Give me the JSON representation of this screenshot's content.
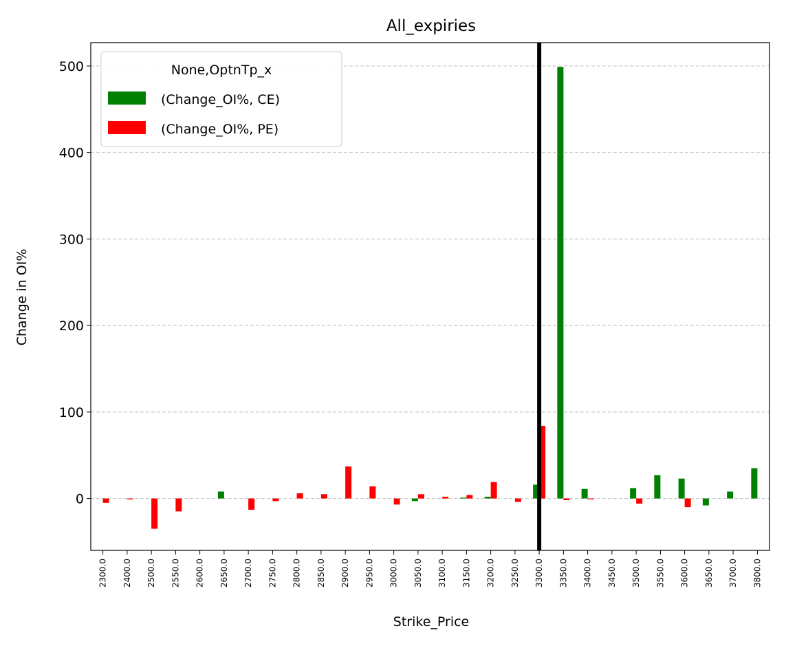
{
  "chart_data": {
    "type": "bar",
    "title": "All_expiries",
    "xlabel": "Strike_Price",
    "ylabel": "Change in OI%",
    "ylim": [
      -60,
      527
    ],
    "yticks": [
      0,
      100,
      200,
      300,
      400,
      500
    ],
    "grid": "y-dashed",
    "legend": {
      "title": "None,OptnTp_x",
      "placement": "top-left"
    },
    "categories": [
      "2300.0",
      "2400.0",
      "2500.0",
      "2550.0",
      "2600.0",
      "2650.0",
      "2700.0",
      "2750.0",
      "2800.0",
      "2850.0",
      "2900.0",
      "2950.0",
      "3000.0",
      "3050.0",
      "3100.0",
      "3150.0",
      "3200.0",
      "3250.0",
      "3300.0",
      "3350.0",
      "3400.0",
      "3450.0",
      "3500.0",
      "3550.0",
      "3600.0",
      "3650.0",
      "3700.0",
      "3800.0"
    ],
    "series": [
      {
        "name": "(Change_OI%, CE)",
        "color": "#008000",
        "values": [
          0,
          0,
          0,
          0,
          0,
          8,
          0,
          0,
          0,
          0,
          0,
          0,
          0,
          -3,
          0,
          1,
          2,
          0,
          16,
          499,
          11,
          0,
          12,
          27,
          23,
          -8,
          8,
          35
        ]
      },
      {
        "name": "(Change_OI%, PE)",
        "color": "#ff0000",
        "values": [
          -5,
          -1,
          -35,
          -15,
          0,
          0,
          -13,
          -3,
          6,
          5,
          37,
          14,
          -7,
          5,
          2,
          4,
          19,
          -4,
          84,
          -2,
          -1,
          0,
          -6,
          0,
          -10,
          0,
          0,
          0
        ]
      }
    ],
    "reference_line": {
      "category": "3300.0",
      "color": "#000000"
    }
  }
}
